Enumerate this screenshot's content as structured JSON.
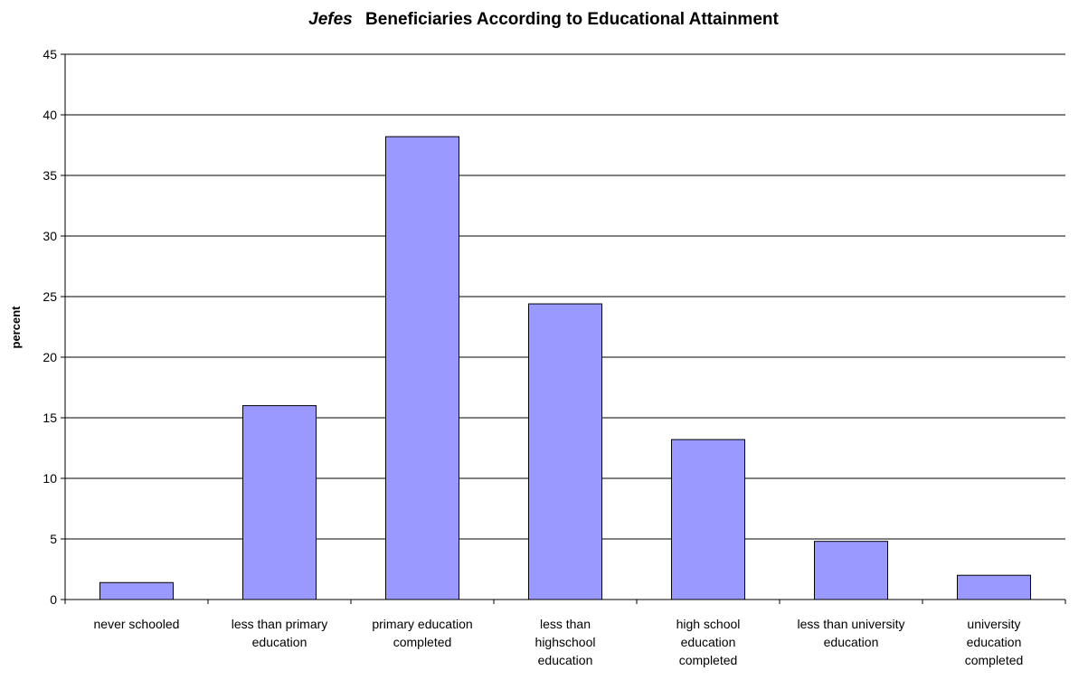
{
  "chart_data": {
    "type": "bar",
    "title_emphasis": "Jefes",
    "title_rest": "Beneficiaries According to Educational Attainment",
    "ylabel": "percent",
    "xlabel": "",
    "ylim": [
      0,
      45
    ],
    "yticks": [
      0,
      5,
      10,
      15,
      20,
      25,
      30,
      35,
      40,
      45
    ],
    "grid": true,
    "legend": "none",
    "bar_color": "#9999ff",
    "categories": [
      [
        "never schooled"
      ],
      [
        "less than primary",
        "education"
      ],
      [
        "primary education",
        "completed"
      ],
      [
        "less than",
        "highschool",
        "education"
      ],
      [
        "high school",
        "education",
        "completed"
      ],
      [
        "less than university",
        "education"
      ],
      [
        "university",
        "education",
        "completed"
      ]
    ],
    "values": [
      1.4,
      16.0,
      38.2,
      24.4,
      13.2,
      4.8,
      2.0
    ]
  }
}
